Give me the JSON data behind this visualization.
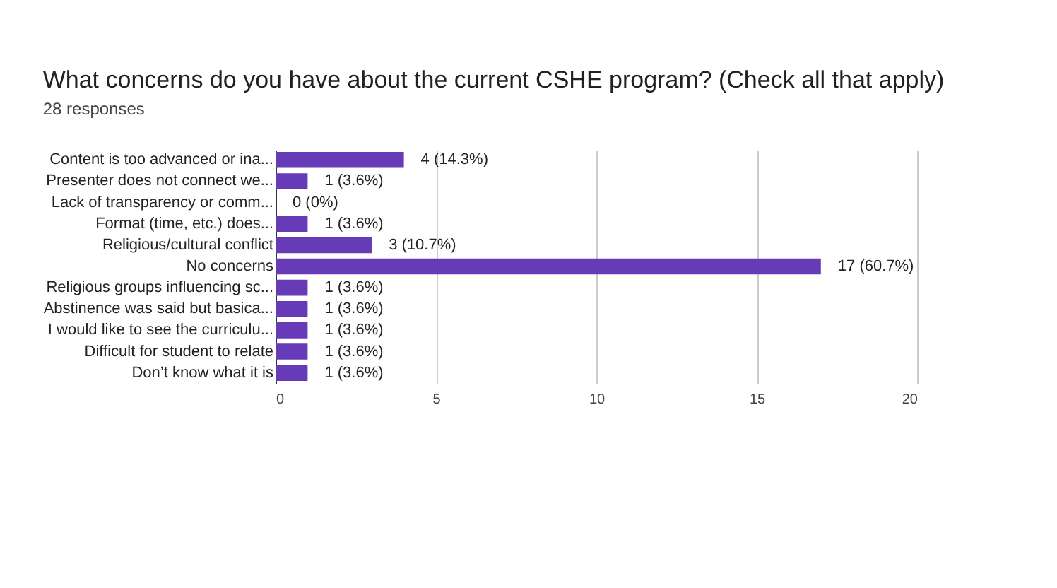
{
  "chart_data": {
    "type": "bar",
    "orientation": "horizontal",
    "title": "What concerns do you have about the current CSHE program? (Check all that apply)",
    "subtitle": "28 responses",
    "categories": [
      "Content is too advanced or ina...",
      "Presenter does not connect we...",
      "Lack of transparency or comm...",
      "Format (time, etc.) does...",
      "Religious/cultural conflict",
      "No concerns",
      "Religious groups influencing sc...",
      "Abstinence was said but basica...",
      "I would like to see the curriculu...",
      "Difficult for student to relate",
      "Don’t know what it is"
    ],
    "series": [
      {
        "color": "#673ab7",
        "values": [
          4,
          1,
          0,
          1,
          3,
          17,
          1,
          1,
          1,
          1,
          1
        ],
        "value_labels": [
          "4 (14.3%)",
          "1 (3.6%)",
          "0 (0%)",
          "1 (3.6%)",
          "3 (10.7%)",
          "17 (60.7%)",
          "1 (3.6%)",
          "1 (3.6%)",
          "1 (3.6%)",
          "1 (3.6%)",
          "1 (3.6%)"
        ]
      }
    ],
    "xlim": [
      0,
      20
    ],
    "xticks": [
      0,
      5,
      10,
      15,
      20
    ],
    "grid": "x"
  }
}
